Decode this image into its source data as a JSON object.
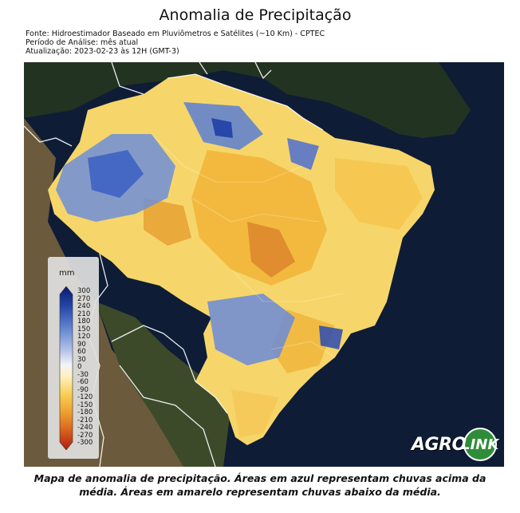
{
  "title": "Anomalia de Precipitação",
  "meta": {
    "source": "Fonte: Hidroestimador Baseado em Pluviômetros e Satélites (~10 Km) - CPTEC",
    "period": "Período de Análise: mês atual",
    "updated": "Atualização: 2023-02-23 às 12H (GMT-3)"
  },
  "legend": {
    "unit": "mm",
    "ticks": [
      "300",
      "270",
      "240",
      "210",
      "180",
      "150",
      "120",
      "90",
      "60",
      "30",
      "0",
      "-30",
      "-60",
      "-90",
      "-120",
      "-150",
      "-180",
      "-210",
      "-240",
      "-270",
      "-300"
    ]
  },
  "logo": {
    "left": "AGRO",
    "right": "LINK"
  },
  "caption": "Mapa de anomalia de precipitação. Áreas em azul representam chuvas acima da média. Áreas em amarelo representam chuvas abaixo da média.",
  "colors": {
    "above": "#3a63c8",
    "below": "#f5b62a",
    "strong_below": "#d98b1c",
    "ocean": "#0d1a33"
  }
}
